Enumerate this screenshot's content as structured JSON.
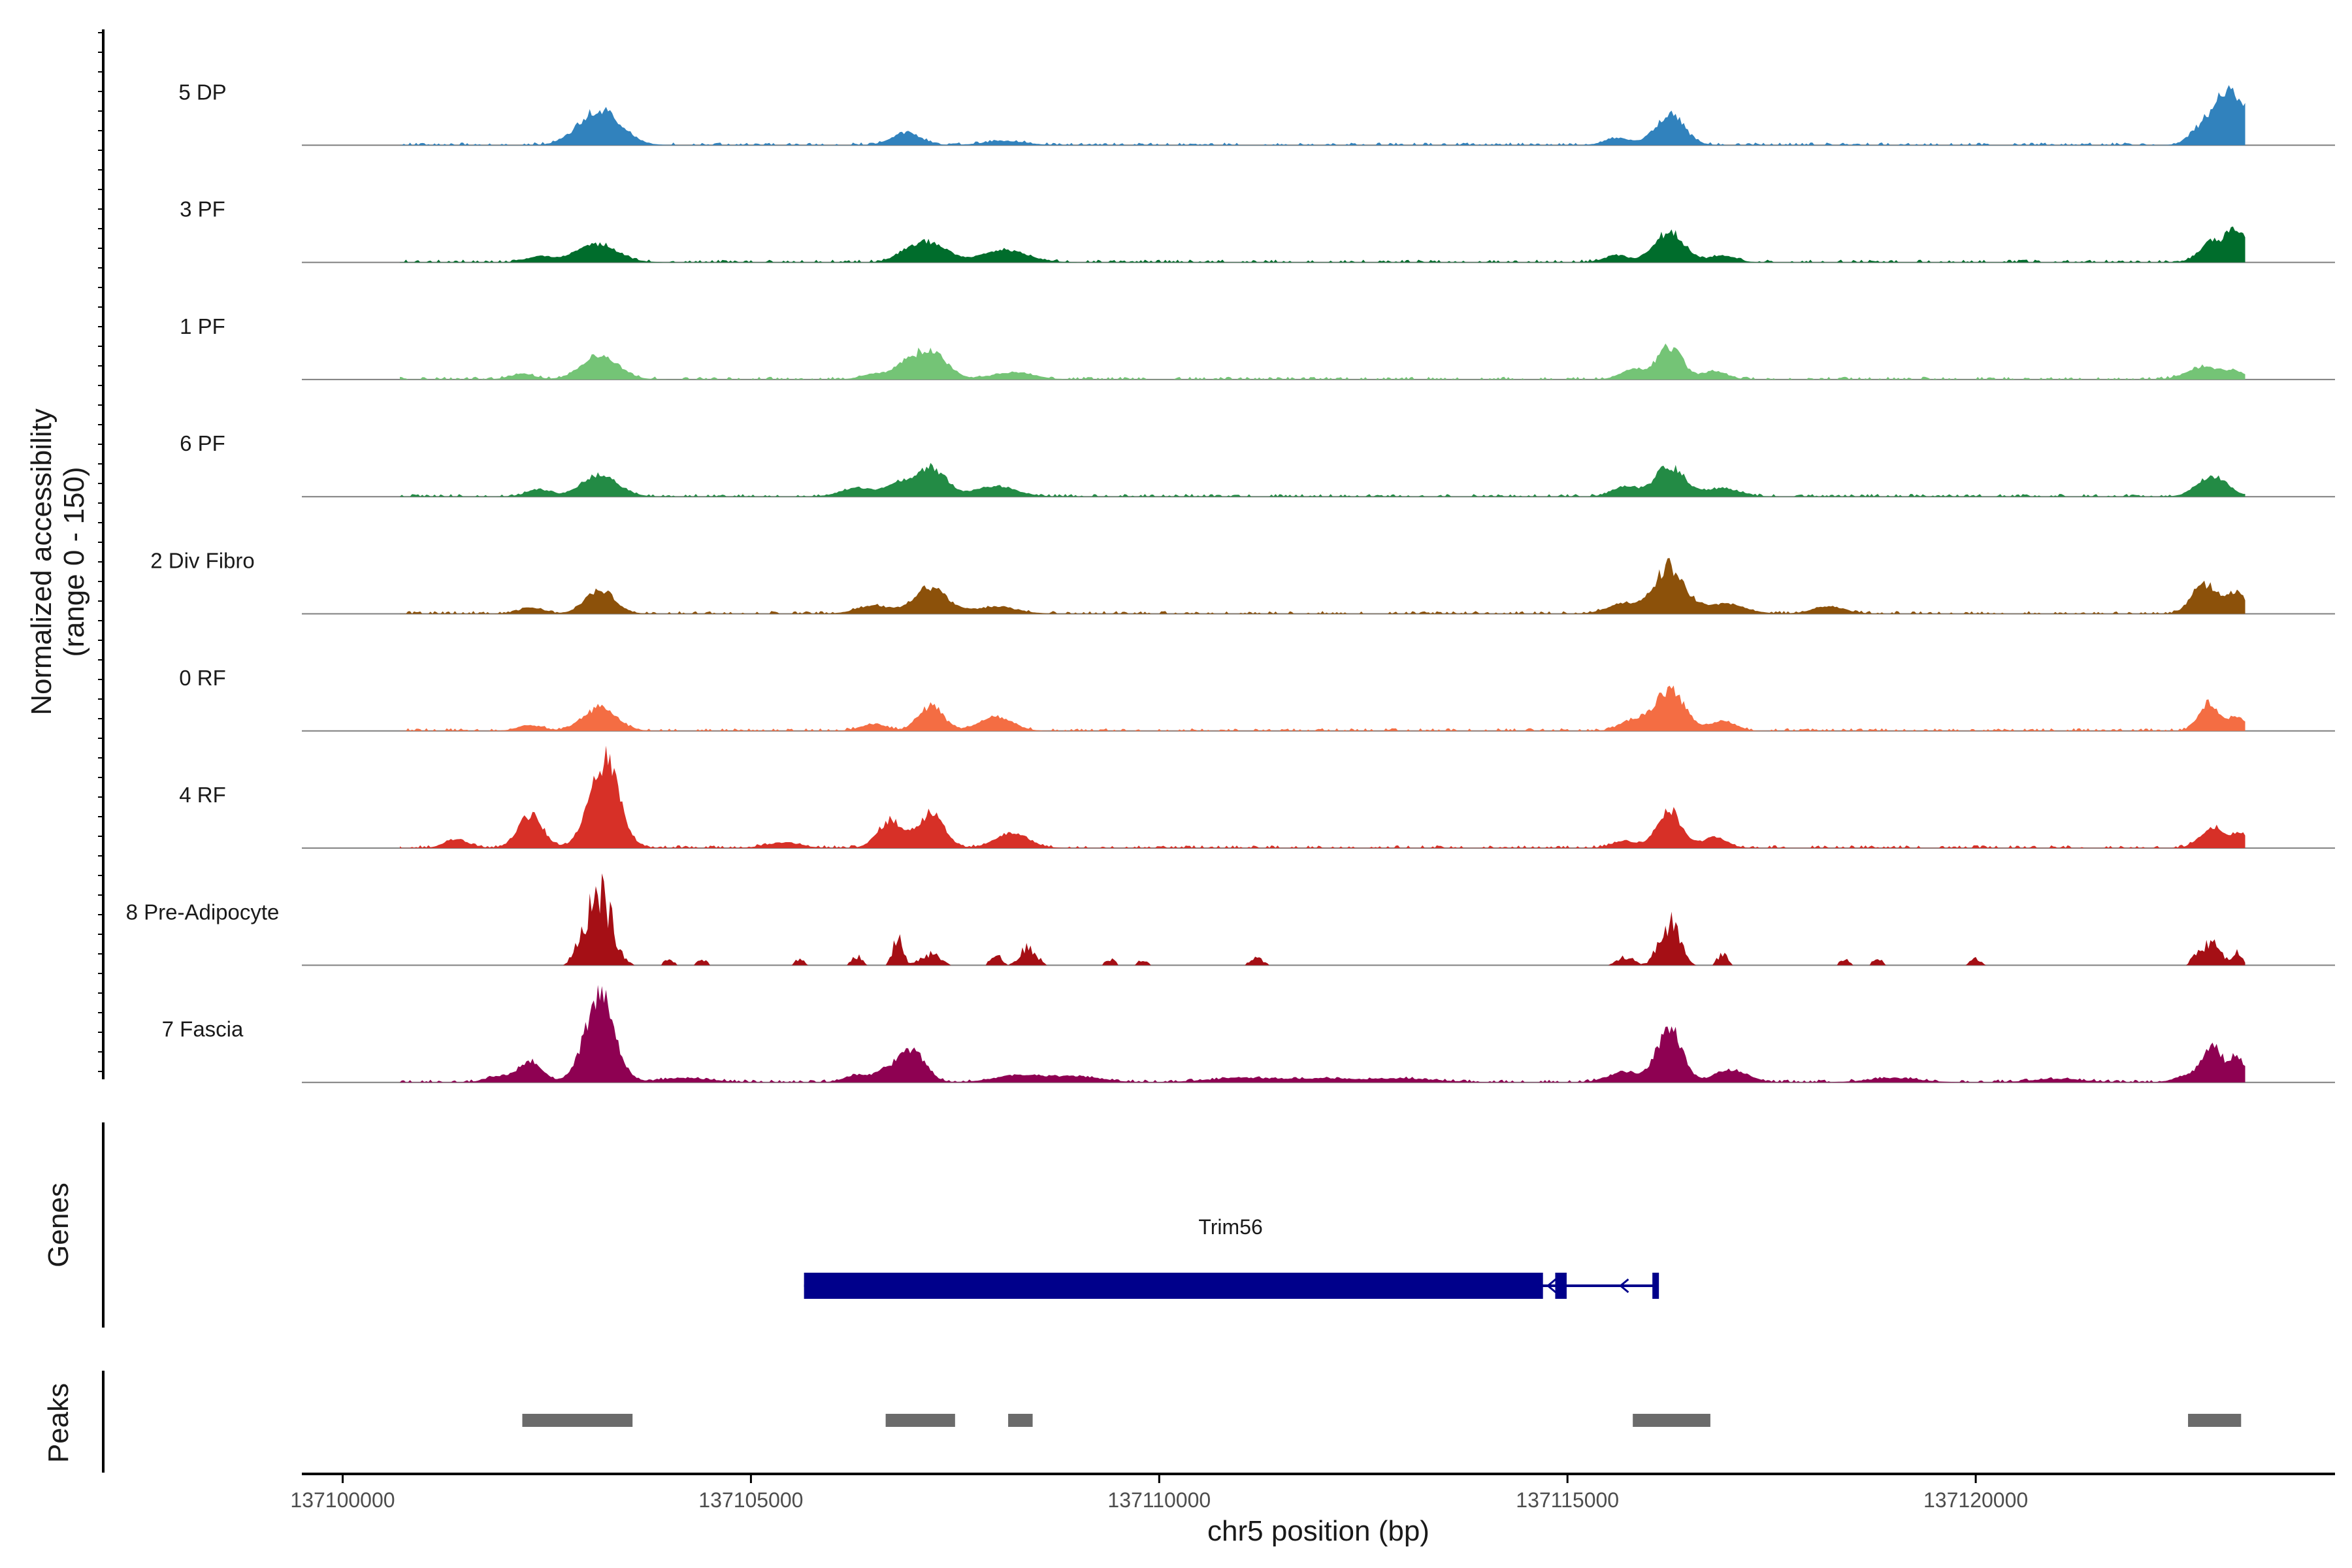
{
  "chart_data": {
    "type": "area",
    "title": "",
    "ylabel_line1": "Normalized accessibility",
    "ylabel_line2": "(range 0 - 150)",
    "ylim": [
      0,
      150
    ],
    "xlabel": "chr5 position (bp)",
    "xlim": [
      137099500,
      137124400
    ],
    "x_ticks": [
      137100000,
      137105000,
      137110000,
      137115000,
      137120000
    ],
    "x_tick_labels": [
      "137100000",
      "137105000",
      "137110000",
      "137115000",
      "137120000"
    ],
    "region_start": 137100700,
    "region_end": 137123300,
    "tracks": [
      {
        "name": "5 DP",
        "color": "#3182bd",
        "peaks": [
          [
            137103150,
            55,
            250
          ],
          [
            137106900,
            18,
            180
          ],
          [
            137108100,
            6,
            250
          ],
          [
            137115600,
            10,
            150
          ],
          [
            137116250,
            45,
            180
          ],
          [
            137122700,
            10,
            120
          ],
          [
            137123100,
            85,
            220
          ]
        ]
      },
      {
        "name": "3 PF",
        "color": "#006d2c",
        "peaks": [
          [
            137102400,
            8,
            150
          ],
          [
            137103100,
            28,
            250
          ],
          [
            137106900,
            12,
            150
          ],
          [
            137107200,
            28,
            200
          ],
          [
            137108100,
            18,
            280
          ],
          [
            137115600,
            10,
            150
          ],
          [
            137116250,
            45,
            180
          ],
          [
            137116900,
            10,
            150
          ],
          [
            137122900,
            30,
            150
          ],
          [
            137123200,
            45,
            120
          ]
        ]
      },
      {
        "name": "1 PF",
        "color": "#74c476",
        "peaks": [
          [
            137102200,
            8,
            150
          ],
          [
            137103150,
            35,
            220
          ],
          [
            137106500,
            8,
            150
          ],
          [
            137106900,
            18,
            150
          ],
          [
            137107200,
            40,
            200
          ],
          [
            137108200,
            10,
            250
          ],
          [
            137115800,
            15,
            150
          ],
          [
            137116250,
            50,
            150
          ],
          [
            137116800,
            12,
            150
          ],
          [
            137122800,
            20,
            200
          ],
          [
            137123200,
            10,
            120
          ]
        ]
      },
      {
        "name": "6 PF",
        "color": "#238b45",
        "peaks": [
          [
            137102400,
            10,
            150
          ],
          [
            137103150,
            32,
            220
          ],
          [
            137106300,
            12,
            200
          ],
          [
            137106800,
            18,
            150
          ],
          [
            137107200,
            45,
            180
          ],
          [
            137108000,
            15,
            250
          ],
          [
            137115700,
            15,
            150
          ],
          [
            137116250,
            45,
            180
          ],
          [
            137116900,
            12,
            200
          ],
          [
            137122900,
            30,
            180
          ]
        ]
      },
      {
        "name": "2 Div Fibro",
        "color": "#8c510a",
        "peaks": [
          [
            137102300,
            8,
            150
          ],
          [
            137103150,
            35,
            180
          ],
          [
            137106500,
            12,
            200
          ],
          [
            137107200,
            38,
            200
          ],
          [
            137108000,
            10,
            250
          ],
          [
            137115700,
            15,
            200
          ],
          [
            137116250,
            70,
            180
          ],
          [
            137116900,
            15,
            250
          ],
          [
            137118200,
            10,
            200
          ],
          [
            137122800,
            45,
            150
          ],
          [
            137123200,
            30,
            120
          ]
        ]
      },
      {
        "name": "0 RF",
        "color": "#f46d43",
        "peaks": [
          [
            137102300,
            8,
            150
          ],
          [
            137103150,
            35,
            200
          ],
          [
            137106500,
            10,
            150
          ],
          [
            137107200,
            38,
            150
          ],
          [
            137108000,
            20,
            200
          ],
          [
            137115800,
            15,
            150
          ],
          [
            137116250,
            60,
            180
          ],
          [
            137116900,
            15,
            150
          ],
          [
            137122850,
            40,
            120
          ],
          [
            137123200,
            20,
            120
          ]
        ]
      },
      {
        "name": "4 RF",
        "color": "#d73027",
        "peaks": [
          [
            137101400,
            12,
            150
          ],
          [
            137102300,
            50,
            150
          ],
          [
            137103200,
            130,
            180
          ],
          [
            137105400,
            8,
            200
          ],
          [
            137106700,
            40,
            150
          ],
          [
            137107200,
            50,
            160
          ],
          [
            137108200,
            22,
            200
          ],
          [
            137115700,
            10,
            150
          ],
          [
            137116250,
            55,
            150
          ],
          [
            137116800,
            15,
            150
          ],
          [
            137122900,
            30,
            150
          ],
          [
            137123250,
            20,
            120
          ]
        ]
      },
      {
        "name": "8 Pre-Adipocyte",
        "color": "#a50f15",
        "peaks": [
          [
            137102900,
            20,
            80
          ],
          [
            137103150,
            120,
            150
          ],
          [
            137104000,
            10,
            60
          ],
          [
            137104400,
            10,
            60
          ],
          [
            137105600,
            10,
            60
          ],
          [
            137106300,
            15,
            60
          ],
          [
            137106800,
            45,
            60
          ],
          [
            137107200,
            20,
            120
          ],
          [
            137108000,
            20,
            60
          ],
          [
            137108400,
            30,
            100
          ],
          [
            137109400,
            10,
            60
          ],
          [
            137109800,
            10,
            60
          ],
          [
            137111200,
            12,
            80
          ],
          [
            137115700,
            15,
            100
          ],
          [
            137116250,
            75,
            120
          ],
          [
            137116900,
            20,
            60
          ],
          [
            137118400,
            10,
            60
          ],
          [
            137118800,
            10,
            60
          ],
          [
            137120000,
            12,
            60
          ],
          [
            137122700,
            15,
            60
          ],
          [
            137122900,
            40,
            100
          ],
          [
            137123200,
            20,
            60
          ]
        ]
      },
      {
        "name": "7 Fascia",
        "color": "#8e0152",
        "peaks": [
          [
            137101900,
            8,
            150
          ],
          [
            137102300,
            30,
            150
          ],
          [
            137103150,
            130,
            180
          ],
          [
            137104200,
            6,
            300
          ],
          [
            137106300,
            10,
            150
          ],
          [
            137106700,
            20,
            150
          ],
          [
            137107000,
            45,
            150
          ],
          [
            137108300,
            10,
            300
          ],
          [
            137109000,
            8,
            300
          ],
          [
            137111000,
            6,
            400
          ],
          [
            137112000,
            5,
            400
          ],
          [
            137113000,
            5,
            400
          ],
          [
            137115700,
            15,
            200
          ],
          [
            137116250,
            80,
            150
          ],
          [
            137117000,
            18,
            200
          ],
          [
            137119000,
            6,
            300
          ],
          [
            137121000,
            5,
            300
          ],
          [
            137122600,
            10,
            150
          ],
          [
            137122900,
            50,
            120
          ],
          [
            137123200,
            35,
            100
          ]
        ]
      }
    ],
    "genes_track_label": "Genes",
    "peaks_track_label": "Peaks",
    "gene": {
      "name": "Trim56",
      "strand": "-",
      "color": "#00008b",
      "start": 137105650,
      "end": 137116100,
      "exons": [
        [
          137105650,
          137114700
        ],
        [
          137114850,
          137114990
        ],
        [
          137116040,
          137116100
        ]
      ]
    },
    "peak_regions": [
      [
        137102200,
        137103550
      ],
      [
        137106650,
        137107500
      ],
      [
        137108150,
        137108450
      ],
      [
        137115800,
        137116750
      ],
      [
        137122600,
        137123250
      ]
    ],
    "peak_color": "#6b6b6b"
  }
}
